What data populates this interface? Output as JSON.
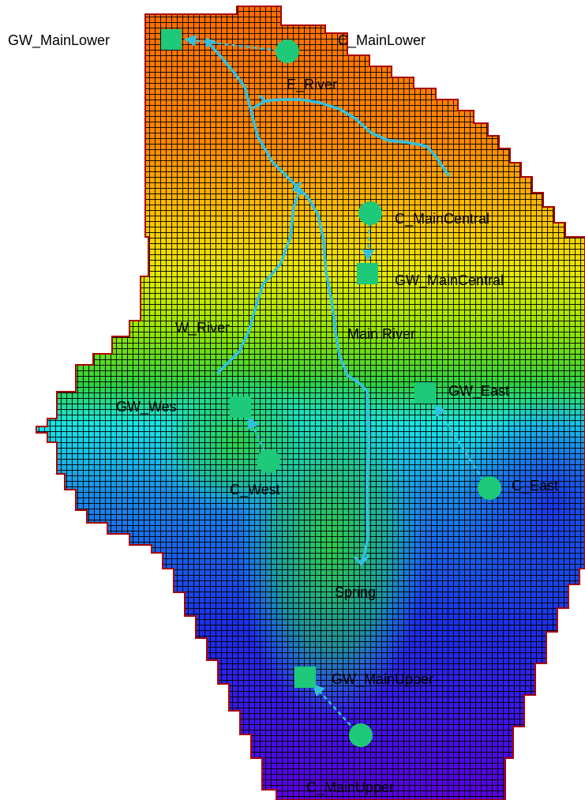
{
  "map": {
    "colors": {
      "background": "#ffffff",
      "grid_lines": "#000000",
      "boundary": "#aa0000",
      "river": "#33c0e0",
      "node": "#1ec97a",
      "link": "#33c0e0",
      "ramp": [
        "#5c00e0",
        "#1a30e8",
        "#1a8ae8",
        "#16e6e6",
        "#20d05a",
        "#9ae600",
        "#e8e800",
        "#ffaa00",
        "#ff6a00"
      ]
    },
    "catchment_nodes": [
      {
        "id": "c-mainlower",
        "label": "C_MainLower"
      },
      {
        "id": "c-maincentral",
        "label": "C_MainCentral"
      },
      {
        "id": "c-west",
        "label": "C_West"
      },
      {
        "id": "c-east",
        "label": "C_East"
      },
      {
        "id": "c-mainupper",
        "label": "C_MainUpper"
      }
    ],
    "groundwater_nodes": [
      {
        "id": "gw-mainlower",
        "label": "GW_MainLower"
      },
      {
        "id": "gw-maincentral",
        "label": "GW_MainCentral"
      },
      {
        "id": "gw-wes",
        "label": "GW_Wes"
      },
      {
        "id": "gw-east",
        "label": "GW_East"
      },
      {
        "id": "gw-mainupper",
        "label": "GW_MainUpper"
      }
    ],
    "rivers": [
      {
        "id": "e-river",
        "label": "E_River"
      },
      {
        "id": "w-river",
        "label": "W_River"
      },
      {
        "id": "main-river",
        "label": "Main River"
      }
    ],
    "spring": {
      "label": "Spring"
    }
  }
}
